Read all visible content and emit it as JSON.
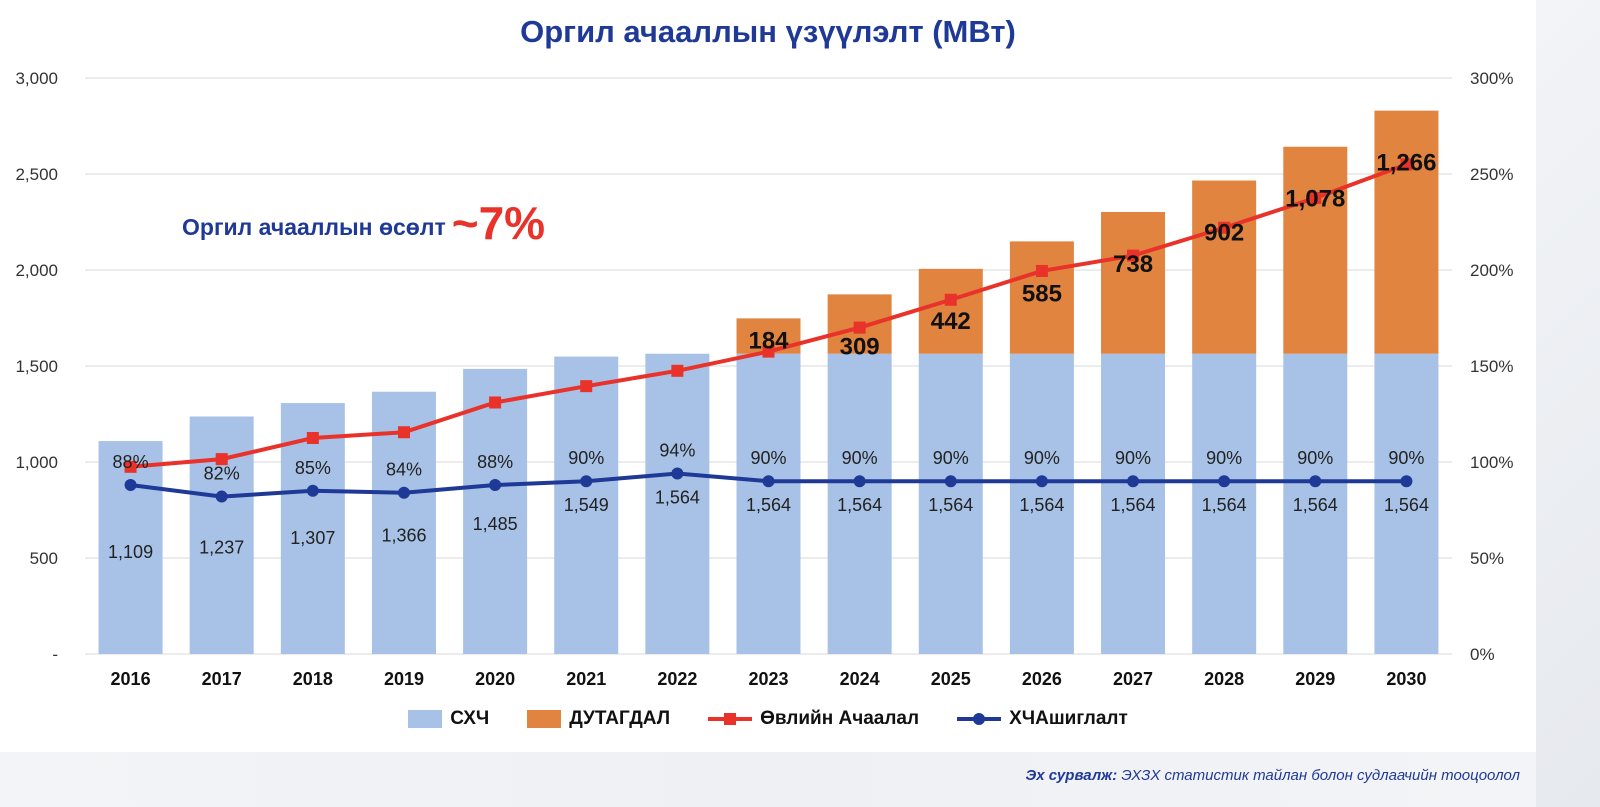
{
  "title": "Оргил ачааллын үзүүлэлт (МВт)",
  "annotation": {
    "text": "Оргил ачааллын өсөлт",
    "value": "~7%"
  },
  "source": {
    "label": "Эх сурвалж:",
    "text": "ЭХЗХ статистик тайлан болон судлаачийн тооцоолол"
  },
  "chart_data": {
    "type": "bar",
    "stacked": true,
    "categories": [
      "2016",
      "2017",
      "2018",
      "2019",
      "2020",
      "2021",
      "2022",
      "2023",
      "2024",
      "2025",
      "2026",
      "2027",
      "2028",
      "2029",
      "2030"
    ],
    "series": [
      {
        "name": "СХЧ",
        "type": "bar",
        "color": "#a7c2e6",
        "values": [
          1109,
          1237,
          1307,
          1366,
          1485,
          1549,
          1564,
          1564,
          1564,
          1564,
          1564,
          1564,
          1564,
          1564,
          1564
        ],
        "labels": [
          "1,109",
          "1,237",
          "1,307",
          "1,366",
          "1,485",
          "1,549",
          "1,564",
          "1,564",
          "1,564",
          "1,564",
          "1,564",
          "1,564",
          "1,564",
          "1,564",
          "1,564"
        ]
      },
      {
        "name": "ДУТАГДАЛ",
        "type": "bar",
        "color": "#e0843f",
        "values": [
          0,
          0,
          0,
          0,
          0,
          0,
          0,
          184,
          309,
          442,
          585,
          738,
          902,
          1078,
          1266
        ],
        "labels": [
          "",
          "",
          "",
          "",
          "",
          "",
          "",
          "184",
          "309",
          "442",
          "585",
          "738",
          "902",
          "1,078",
          "1,266"
        ]
      },
      {
        "name": "Өвлийн Ачаалал",
        "type": "line",
        "axis": "left",
        "color": "#e8322a",
        "values": [
          975,
          1015,
          1125,
          1155,
          1310,
          1395,
          1475,
          1575,
          1700,
          1845,
          1995,
          2075,
          2220,
          2375,
          2550
        ]
      },
      {
        "name": "ХЧАшиглалт",
        "type": "line",
        "axis": "right",
        "color": "#1f3996",
        "values": [
          88,
          82,
          85,
          84,
          88,
          90,
          94,
          90,
          90,
          90,
          90,
          90,
          90,
          90,
          90
        ],
        "labels": [
          "88%",
          "82%",
          "85%",
          "84%",
          "88%",
          "90%",
          "94%",
          "90%",
          "90%",
          "90%",
          "90%",
          "90%",
          "90%",
          "90%",
          "90%"
        ]
      }
    ],
    "ylim": [
      0,
      3000
    ],
    "yticks": [
      "-",
      "500",
      "1,000",
      "1,500",
      "2,000",
      "2,500",
      "3,000"
    ],
    "y2lim": [
      0,
      300
    ],
    "y2ticks": [
      "0%",
      "50%",
      "100%",
      "150%",
      "200%",
      "250%",
      "300%"
    ],
    "grid": true,
    "legend_position": "bottom"
  }
}
